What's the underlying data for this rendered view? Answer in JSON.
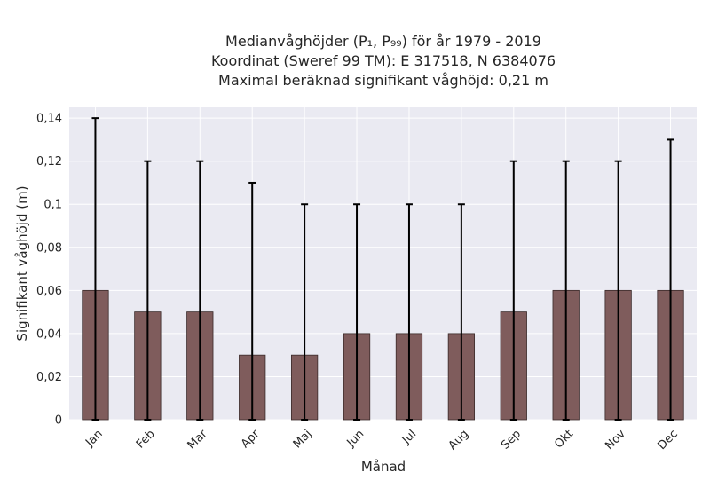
{
  "chart_data": {
    "type": "bar",
    "title_lines": [
      "Medianvåghöjder (P₁, P₉₉) för år 1979 - 2019",
      "Koordinat (Sweref 99 TM): E 317518, N 6384076",
      "Maximal beräknad signifikant våghöjd: 0,21 m"
    ],
    "xlabel": "Månad",
    "ylabel": "Signifikant våghöjd (m)",
    "categories": [
      "Jan",
      "Feb",
      "Mar",
      "Apr",
      "Maj",
      "Jun",
      "Jul",
      "Aug",
      "Sep",
      "Okt",
      "Nov",
      "Dec"
    ],
    "series": [
      {
        "values": [
          0.06,
          0.05,
          0.05,
          0.03,
          0.03,
          0.04,
          0.04,
          0.04,
          0.05,
          0.06,
          0.06,
          0.06
        ],
        "error_low": [
          0,
          0,
          0,
          0,
          0,
          0,
          0,
          0,
          0,
          0,
          0,
          0
        ],
        "error_high": [
          0.14,
          0.12,
          0.12,
          0.11,
          0.1,
          0.1,
          0.1,
          0.1,
          0.12,
          0.12,
          0.12,
          0.13
        ]
      }
    ],
    "ylim": [
      0,
      0.145
    ],
    "yticks": [
      0,
      0.02,
      0.04,
      0.06,
      0.08,
      0.1,
      0.12,
      0.14
    ],
    "ytick_labels": [
      "0",
      "0,02",
      "0,04",
      "0,06",
      "0,08",
      "0,1",
      "0,12",
      "0,14"
    ],
    "grid": true,
    "colors": {
      "bar": "#7f5c5c",
      "bar_edge": "#3a2a2a",
      "error_bar": "#000000",
      "plot_background": "#eaeaf2",
      "grid": "#ffffff"
    }
  }
}
